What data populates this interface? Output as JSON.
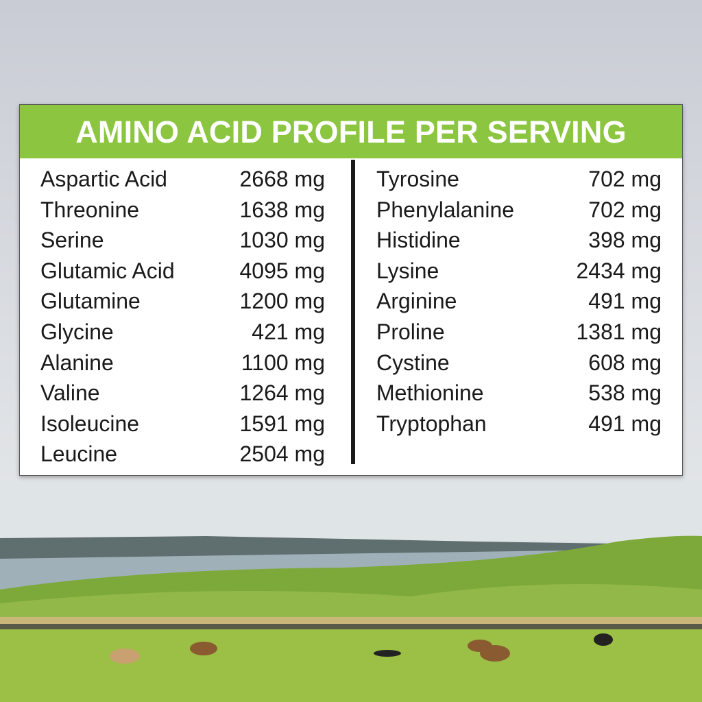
{
  "title": "AMINO ACID PROFILE PER SERVING",
  "colors": {
    "header_green": "#8cc540",
    "text": "#1a1a1a"
  },
  "left_column": [
    {
      "name": "Aspartic Acid",
      "amount": "2668 mg"
    },
    {
      "name": "Threonine",
      "amount": "1638 mg"
    },
    {
      "name": "Serine",
      "amount": "1030 mg"
    },
    {
      "name": "Glutamic Acid",
      "amount": "4095 mg"
    },
    {
      "name": "Glutamine",
      "amount": "1200 mg"
    },
    {
      "name": "Glycine",
      "amount": "421 mg"
    },
    {
      "name": "Alanine",
      "amount": "1100 mg"
    },
    {
      "name": "Valine",
      "amount": "1264 mg"
    },
    {
      "name": "Isoleucine",
      "amount": "1591 mg"
    },
    {
      "name": "Leucine",
      "amount": "2504 mg"
    }
  ],
  "right_column": [
    {
      "name": "Tyrosine",
      "amount": "702 mg"
    },
    {
      "name": "Phenylalanine",
      "amount": "702 mg"
    },
    {
      "name": "Histidine",
      "amount": "398 mg"
    },
    {
      "name": "Lysine",
      "amount": "2434 mg"
    },
    {
      "name": "Arginine",
      "amount": "491 mg"
    },
    {
      "name": "Proline",
      "amount": "1381 mg"
    },
    {
      "name": "Cystine",
      "amount": "608 mg"
    },
    {
      "name": "Methionine",
      "amount": "538 mg"
    },
    {
      "name": "Tryptophan",
      "amount": "491 mg"
    }
  ]
}
